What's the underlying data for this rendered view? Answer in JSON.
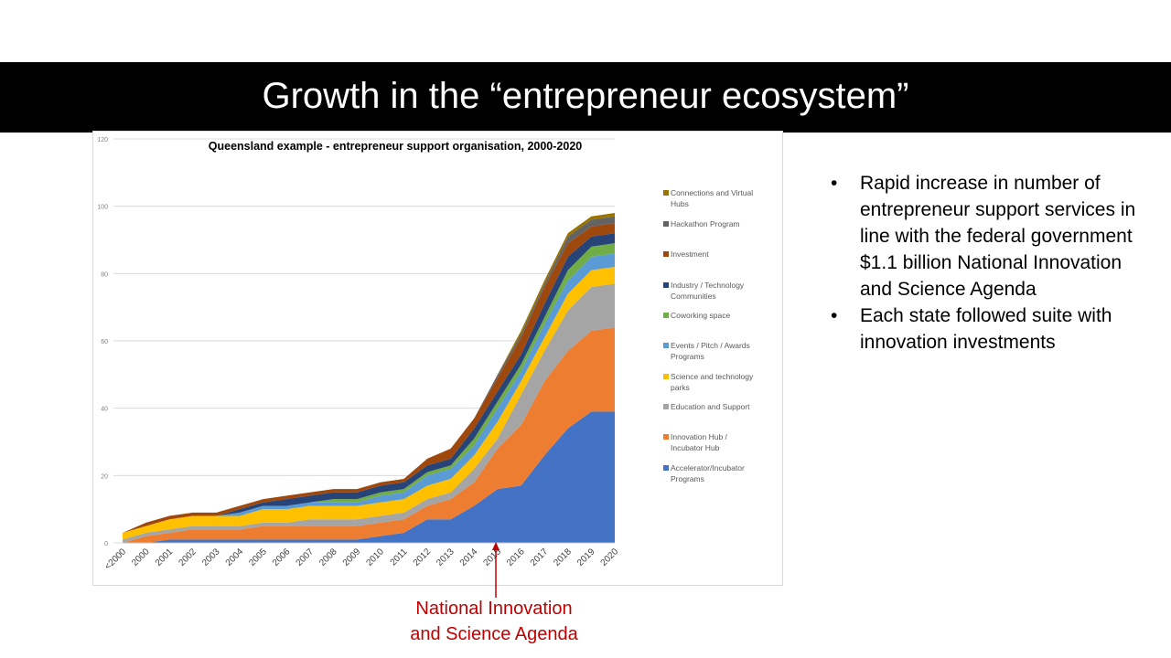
{
  "slide_title": "Growth in the “entrepreneur ecosystem”",
  "bullets": [
    "Rapid increase in number of entrepreneur support services in line with the federal government $1.1 billion National Innovation and Science Agenda",
    "Each state followed suite with innovation investments"
  ],
  "annotation": {
    "line1": "National Innovation",
    "line2": "and Science Agenda",
    "color": "#c00000"
  },
  "chart_data": {
    "type": "area",
    "stacked": true,
    "title": "Queensland example - entrepreneur support organisation, 2000-2020",
    "xlabel": "",
    "ylabel": "",
    "ylim": [
      0,
      120
    ],
    "yticks": [
      0,
      20,
      40,
      60,
      80,
      100,
      120
    ],
    "grid": true,
    "legend": "right",
    "categories": [
      "<2000",
      "2000",
      "2001",
      "2002",
      "2003",
      "2004",
      "2005",
      "2006",
      "2007",
      "2008",
      "2009",
      "2010",
      "2011",
      "2012",
      "2013",
      "2014",
      "2015",
      "2016",
      "2017",
      "2018",
      "2019",
      "2020"
    ],
    "series": [
      {
        "name": "Accelerator/Incubator Programs",
        "color": "#4472c4",
        "values": [
          0,
          0,
          1,
          1,
          1,
          1,
          1,
          1,
          1,
          1,
          1,
          2,
          3,
          7,
          7,
          11,
          16,
          17,
          26,
          34,
          39,
          39
        ]
      },
      {
        "name": "Innovation Hub / Incubator Hub",
        "color": "#ed7d31",
        "values": [
          0,
          2,
          2,
          3,
          3,
          3,
          4,
          4,
          4,
          4,
          4,
          4,
          4,
          4,
          6,
          7,
          12,
          18,
          22,
          23,
          24,
          25
        ]
      },
      {
        "name": "Education and Support",
        "color": "#a5a5a5",
        "values": [
          1,
          1,
          1,
          1,
          1,
          1,
          1,
          1,
          2,
          2,
          2,
          2,
          2,
          2,
          2,
          4,
          3,
          9,
          9,
          12,
          13,
          13
        ]
      },
      {
        "name": "Science and technology parks",
        "color": "#ffc000",
        "values": [
          2,
          2,
          3,
          3,
          3,
          3,
          4,
          4,
          4,
          4,
          4,
          4,
          4,
          4,
          4,
          4,
          5,
          4,
          4,
          5,
          5,
          5
        ]
      },
      {
        "name": "Events / Pitch / Awards Programs",
        "color": "#5b9bd5",
        "values": [
          0,
          0,
          0,
          0,
          0,
          1,
          1,
          1,
          1,
          1,
          1,
          2,
          2,
          3,
          3,
          3,
          4,
          3,
          4,
          4,
          4,
          4
        ]
      },
      {
        "name": "Coworking space",
        "color": "#70ad47",
        "values": [
          0,
          0,
          0,
          0,
          0,
          0,
          0,
          0,
          0,
          1,
          1,
          1,
          1,
          1,
          1,
          2,
          2,
          2,
          2,
          3,
          3,
          3
        ]
      },
      {
        "name": "Industry / Technology Communities",
        "color": "#264478",
        "values": [
          0,
          0,
          0,
          0,
          0,
          1,
          1,
          2,
          2,
          2,
          2,
          2,
          2,
          2,
          2,
          3,
          3,
          3,
          4,
          4,
          3,
          3
        ]
      },
      {
        "name": "Investment",
        "color": "#9e480e",
        "values": [
          0,
          1,
          1,
          1,
          1,
          1,
          1,
          1,
          1,
          1,
          1,
          1,
          1,
          2,
          3,
          3,
          4,
          5,
          5,
          4,
          3,
          3
        ]
      },
      {
        "name": "Hackathon Program",
        "color": "#636363",
        "values": [
          0,
          0,
          0,
          0,
          0,
          0,
          0,
          0,
          0,
          0,
          0,
          0,
          0,
          0,
          0,
          0,
          1,
          1,
          1,
          2,
          2,
          2
        ]
      },
      {
        "name": "Connections and Virtual Hubs",
        "color": "#997300",
        "values": [
          0,
          0,
          0,
          0,
          0,
          0,
          0,
          0,
          0,
          0,
          0,
          0,
          0,
          0,
          0,
          0,
          0,
          1,
          1,
          1,
          1,
          1
        ]
      }
    ]
  }
}
